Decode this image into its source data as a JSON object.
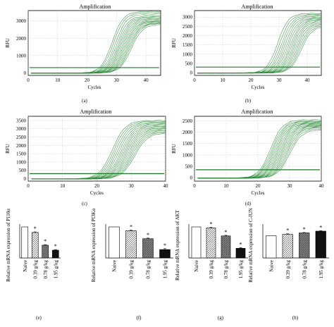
{
  "chart_data": [
    {
      "type": "line",
      "panel_label": "(a)",
      "title": "Amplification",
      "xlabel": "Cycles",
      "ylabel": "RFU",
      "xlim": [
        0,
        45
      ],
      "ylim": [
        -150,
        3600
      ],
      "xticks": [
        0,
        10,
        20,
        30,
        40
      ],
      "yticks": [
        0,
        1000,
        2000,
        3000
      ],
      "threshold": 300,
      "curve_plateaus": [
        3550,
        3480,
        3400,
        3300,
        3250,
        3200,
        3150,
        3100,
        3050,
        3000,
        2980,
        2950,
        2900,
        2880,
        2860,
        2800
      ],
      "curve_midpoints": [
        28.5,
        29.0,
        29.6,
        30.1,
        30.6,
        31.0,
        31.4,
        31.8,
        32.2,
        32.6,
        33.0,
        33.4,
        33.8,
        34.2,
        34.6,
        35.0
      ],
      "line_color": "#2e8b3a"
    },
    {
      "type": "line",
      "panel_label": "(b)",
      "title": "Amplification",
      "xlabel": "Cycles",
      "ylabel": "RFU",
      "xlim": [
        0,
        45
      ],
      "ylim": [
        -150,
        3350
      ],
      "xticks": [
        0,
        10,
        20,
        30,
        40
      ],
      "yticks": [
        0,
        500,
        1000,
        1500,
        2000,
        2500,
        3000
      ],
      "threshold": 300,
      "curve_plateaus": [
        3200,
        3150,
        3100,
        3050,
        3000,
        2950,
        2920,
        2880,
        2850,
        2800,
        2760,
        2700,
        2650,
        2600,
        2550,
        2500
      ],
      "curve_midpoints": [
        29.5,
        30.2,
        30.9,
        31.5,
        32.1,
        32.7,
        33.3,
        33.9,
        34.4,
        34.9,
        35.4,
        35.9,
        36.4,
        36.9,
        37.4,
        37.9
      ],
      "line_color": "#2e8b3a"
    },
    {
      "type": "line",
      "panel_label": "(c)",
      "title": "Amplification",
      "xlabel": "Cycles",
      "ylabel": "RFU",
      "xlim": [
        0,
        40
      ],
      "ylim": [
        -150,
        3750
      ],
      "xticks": [
        0,
        10,
        20,
        30,
        40
      ],
      "yticks": [
        0,
        500,
        1000,
        1500,
        2000,
        2500,
        3000,
        3500
      ],
      "threshold": 300,
      "curve_plateaus": [
        3500,
        3450,
        3400,
        3350,
        3300,
        3250,
        3200,
        3150,
        3100,
        3050,
        3000,
        2950,
        2900,
        2850,
        2800,
        2750
      ],
      "curve_midpoints": [
        24.5,
        25.0,
        25.5,
        26.0,
        26.5,
        27.0,
        27.4,
        27.8,
        28.2,
        28.6,
        29.0,
        29.4,
        29.8,
        30.2,
        30.6,
        31.0
      ],
      "line_color": "#2e8b3a"
    },
    {
      "type": "line",
      "panel_label": "(d)",
      "title": "Amplification",
      "xlabel": "Cycles",
      "ylabel": "RFU",
      "xlim": [
        0,
        40
      ],
      "ylim": [
        -150,
        2700
      ],
      "xticks": [
        0,
        10,
        20,
        30,
        40
      ],
      "yticks": [
        0,
        500,
        1000,
        1500,
        2000,
        2500
      ],
      "threshold": 350,
      "curve_plateaus": [
        2550,
        2500,
        2480,
        2450,
        2420,
        2400,
        2380,
        2350,
        2320,
        2300,
        2280,
        2250,
        2220,
        2200,
        2150,
        2100
      ],
      "curve_midpoints": [
        24.0,
        24.4,
        24.8,
        25.2,
        25.6,
        26.0,
        26.4,
        26.8,
        27.2,
        27.6,
        28.0,
        28.4,
        28.8,
        29.2,
        29.6,
        30.0
      ],
      "line_color": "#2e8b3a"
    },
    {
      "type": "bar",
      "panel_label": "(e)",
      "ylabel": "Relative mRNA expression of P110α",
      "categories": [
        "Naive",
        "0.39 g/kg",
        "0.78 g/kg",
        "1.95 g/kg"
      ],
      "values": [
        1.0,
        0.82,
        0.41,
        0.25
      ],
      "errors": [
        0.0,
        0.02,
        0.02,
        0.02
      ],
      "significant": [
        false,
        true,
        true,
        true
      ],
      "ylim": [
        0,
        1.0
      ],
      "fills": [
        "white",
        "hatch-light",
        "hatch-dark",
        "black"
      ]
    },
    {
      "type": "bar",
      "panel_label": "(f)",
      "ylabel": "Relative mRNA expression of PI3Kα",
      "categories": [
        "Naive",
        "0.39 g/kg",
        "0.78 g/kg",
        "1.95 g/kg"
      ],
      "values": [
        1.0,
        0.88,
        0.62,
        0.27
      ],
      "errors": [
        0.0,
        0.02,
        0.02,
        0.03
      ],
      "significant": [
        false,
        true,
        true,
        true
      ],
      "ylim": [
        0,
        1.0
      ],
      "fills": [
        "white",
        "hatch-light",
        "hatch-dark",
        "black"
      ]
    },
    {
      "type": "bar",
      "panel_label": "(g)",
      "ylabel": "Relative mRNA expression of AKT",
      "categories": [
        "Naive",
        "0.39 g/kg",
        "0.78 g/kg",
        "1.95 g/kg"
      ],
      "values": [
        1.0,
        0.97,
        0.71,
        0.31
      ],
      "errors": [
        0.0,
        0.02,
        0.02,
        0.02
      ],
      "significant": [
        false,
        true,
        true,
        true
      ],
      "ylim": [
        0,
        1.0
      ],
      "fills": [
        "white",
        "hatch-light",
        "hatch-dark",
        "black"
      ]
    },
    {
      "type": "bar",
      "panel_label": "(h)",
      "ylabel": "Relative mRNA expression of C-JUN",
      "categories": [
        "Naive",
        "0.39 g/kg",
        "0.78 g/kg",
        "1.95 g/kg"
      ],
      "values": [
        1.0,
        1.06,
        1.13,
        1.21
      ],
      "errors": [
        0.0,
        0.03,
        0.02,
        0.02
      ],
      "significant": [
        false,
        true,
        true,
        true
      ],
      "ylim": [
        0,
        1.4
      ],
      "fills": [
        "white",
        "hatch-light",
        "hatch-dark",
        "black"
      ]
    }
  ]
}
